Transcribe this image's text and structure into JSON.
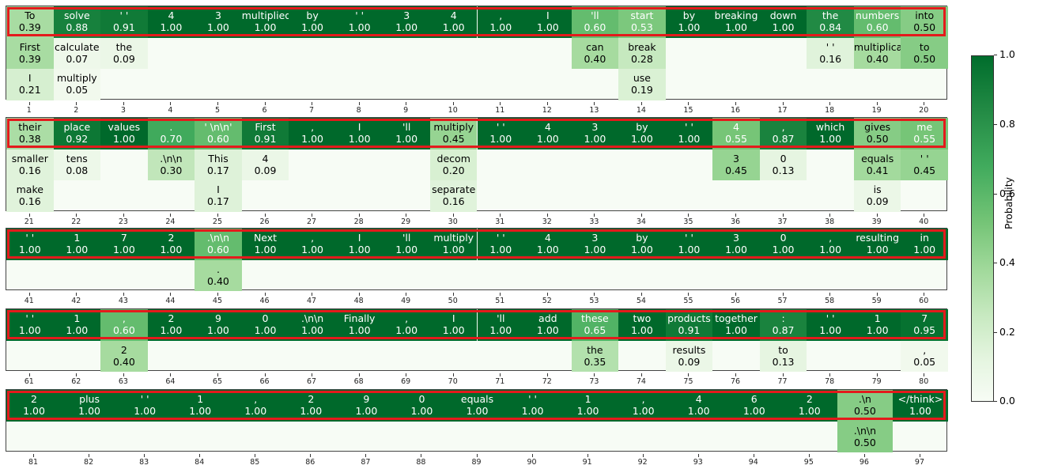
{
  "chart_data": {
    "type": "heatmap",
    "title": "",
    "colormap": "Greens",
    "colorbar": {
      "label": "Probability",
      "ticks": [
        "0.0",
        "0.2",
        "0.4",
        "0.6",
        "0.8",
        "1.0"
      ],
      "range": [
        0,
        1
      ]
    },
    "highlight_color": "#e41a1c",
    "panels": [
      {
        "rows": 3,
        "positions": [
          {
            "pos": 1,
            "cands": [
              [
                "To",
                "0.39"
              ],
              [
                "First",
                "0.39"
              ],
              [
                "I",
                "0.21"
              ]
            ]
          },
          {
            "pos": 2,
            "cands": [
              [
                "solve",
                "0.88"
              ],
              [
                "calculate",
                "0.07"
              ],
              [
                "multiply",
                "0.05"
              ]
            ]
          },
          {
            "pos": 3,
            "cands": [
              [
                "' '",
                "0.91"
              ],
              [
                "the",
                "0.09"
              ]
            ]
          },
          {
            "pos": 4,
            "cands": [
              [
                "4",
                "1.00"
              ]
            ]
          },
          {
            "pos": 5,
            "cands": [
              [
                "3",
                "1.00"
              ]
            ]
          },
          {
            "pos": 6,
            "cands": [
              [
                "multiplied",
                "1.00"
              ]
            ]
          },
          {
            "pos": 7,
            "cands": [
              [
                "by",
                "1.00"
              ]
            ]
          },
          {
            "pos": 8,
            "cands": [
              [
                "' '",
                "1.00"
              ]
            ]
          },
          {
            "pos": 9,
            "cands": [
              [
                "3",
                "1.00"
              ]
            ]
          },
          {
            "pos": 10,
            "cands": [
              [
                "4",
                "1.00"
              ]
            ]
          },
          {
            "pos": 11,
            "cands": [
              [
                ",",
                "1.00"
              ]
            ]
          },
          {
            "pos": 12,
            "cands": [
              [
                "I",
                "1.00"
              ]
            ]
          },
          {
            "pos": 13,
            "cands": [
              [
                "'ll",
                "0.60"
              ],
              [
                "can",
                "0.40"
              ]
            ]
          },
          {
            "pos": 14,
            "cands": [
              [
                "start",
                "0.53"
              ],
              [
                "break",
                "0.28"
              ],
              [
                "use",
                "0.19"
              ]
            ]
          },
          {
            "pos": 15,
            "cands": [
              [
                "by",
                "1.00"
              ]
            ]
          },
          {
            "pos": 16,
            "cands": [
              [
                "breaking",
                "1.00"
              ]
            ]
          },
          {
            "pos": 17,
            "cands": [
              [
                "down",
                "1.00"
              ]
            ]
          },
          {
            "pos": 18,
            "cands": [
              [
                "the",
                "0.84"
              ],
              [
                "' '",
                "0.16"
              ]
            ]
          },
          {
            "pos": 19,
            "cands": [
              [
                "numbers",
                "0.60"
              ],
              [
                "multiplication",
                "0.40"
              ]
            ]
          },
          {
            "pos": 20,
            "cands": [
              [
                "into",
                "0.50"
              ],
              [
                "to",
                "0.50"
              ]
            ]
          }
        ]
      },
      {
        "rows": 3,
        "positions": [
          {
            "pos": 21,
            "cands": [
              [
                "their",
                "0.38"
              ],
              [
                "smaller",
                "0.16"
              ],
              [
                "make",
                "0.16"
              ]
            ]
          },
          {
            "pos": 22,
            "cands": [
              [
                "place",
                "0.92"
              ],
              [
                "tens",
                "0.08"
              ]
            ]
          },
          {
            "pos": 23,
            "cands": [
              [
                "values",
                "1.00"
              ]
            ]
          },
          {
            "pos": 24,
            "cands": [
              [
                ".",
                "0.70"
              ],
              [
                ".\\n\\n",
                "0.30"
              ]
            ]
          },
          {
            "pos": 25,
            "cands": [
              [
                "' \\n\\n'",
                "0.60"
              ],
              [
                "This",
                "0.17"
              ],
              [
                "I",
                "0.17"
              ]
            ]
          },
          {
            "pos": 26,
            "cands": [
              [
                "First",
                "0.91"
              ],
              [
                "4",
                "0.09"
              ]
            ]
          },
          {
            "pos": 27,
            "cands": [
              [
                ",",
                "1.00"
              ]
            ]
          },
          {
            "pos": 28,
            "cands": [
              [
                "I",
                "1.00"
              ]
            ]
          },
          {
            "pos": 29,
            "cands": [
              [
                "'ll",
                "1.00"
              ]
            ]
          },
          {
            "pos": 30,
            "cands": [
              [
                "multiply",
                "0.45"
              ],
              [
                "decom",
                "0.20"
              ],
              [
                "separate",
                "0.16"
              ]
            ]
          },
          {
            "pos": 31,
            "cands": [
              [
                "' '",
                "1.00"
              ]
            ]
          },
          {
            "pos": 32,
            "cands": [
              [
                "4",
                "1.00"
              ]
            ]
          },
          {
            "pos": 33,
            "cands": [
              [
                "3",
                "1.00"
              ]
            ]
          },
          {
            "pos": 34,
            "cands": [
              [
                "by",
                "1.00"
              ]
            ]
          },
          {
            "pos": 35,
            "cands": [
              [
                "' '",
                "1.00"
              ]
            ]
          },
          {
            "pos": 36,
            "cands": [
              [
                "4",
                "0.55"
              ],
              [
                "3",
                "0.45"
              ]
            ]
          },
          {
            "pos": 37,
            "cands": [
              [
                ",",
                "0.87"
              ],
              [
                "0",
                "0.13"
              ]
            ]
          },
          {
            "pos": 38,
            "cands": [
              [
                "which",
                "1.00"
              ]
            ]
          },
          {
            "pos": 39,
            "cands": [
              [
                "gives",
                "0.50"
              ],
              [
                "equals",
                "0.41"
              ],
              [
                "is",
                "0.09"
              ]
            ]
          },
          {
            "pos": 40,
            "cands": [
              [
                "me",
                "0.55"
              ],
              [
                "' '",
                "0.45"
              ]
            ]
          }
        ]
      },
      {
        "rows": 2,
        "positions": [
          {
            "pos": 41,
            "cands": [
              [
                "' '",
                "1.00"
              ]
            ]
          },
          {
            "pos": 42,
            "cands": [
              [
                "1",
                "1.00"
              ]
            ]
          },
          {
            "pos": 43,
            "cands": [
              [
                "7",
                "1.00"
              ]
            ]
          },
          {
            "pos": 44,
            "cands": [
              [
                "2",
                "1.00"
              ]
            ]
          },
          {
            "pos": 45,
            "cands": [
              [
                ".\\n\\n",
                "0.60"
              ],
              [
                ".",
                "0.40"
              ]
            ]
          },
          {
            "pos": 46,
            "cands": [
              [
                "Next",
                "1.00"
              ]
            ]
          },
          {
            "pos": 47,
            "cands": [
              [
                ",",
                "1.00"
              ]
            ]
          },
          {
            "pos": 48,
            "cands": [
              [
                "I",
                "1.00"
              ]
            ]
          },
          {
            "pos": 49,
            "cands": [
              [
                "'ll",
                "1.00"
              ]
            ]
          },
          {
            "pos": 50,
            "cands": [
              [
                "multiply",
                "1.00"
              ]
            ]
          },
          {
            "pos": 51,
            "cands": [
              [
                "' '",
                "1.00"
              ]
            ]
          },
          {
            "pos": 52,
            "cands": [
              [
                "4",
                "1.00"
              ]
            ]
          },
          {
            "pos": 53,
            "cands": [
              [
                "3",
                "1.00"
              ]
            ]
          },
          {
            "pos": 54,
            "cands": [
              [
                "by",
                "1.00"
              ]
            ]
          },
          {
            "pos": 55,
            "cands": [
              [
                "' '",
                "1.00"
              ]
            ]
          },
          {
            "pos": 56,
            "cands": [
              [
                "3",
                "1.00"
              ]
            ]
          },
          {
            "pos": 57,
            "cands": [
              [
                "0",
                "1.00"
              ]
            ]
          },
          {
            "pos": 58,
            "cands": [
              [
                ",",
                "1.00"
              ]
            ]
          },
          {
            "pos": 59,
            "cands": [
              [
                "resulting",
                "1.00"
              ]
            ]
          },
          {
            "pos": 60,
            "cands": [
              [
                "in",
                "1.00"
              ]
            ]
          }
        ]
      },
      {
        "rows": 2,
        "positions": [
          {
            "pos": 61,
            "cands": [
              [
                "' '",
                "1.00"
              ]
            ]
          },
          {
            "pos": 62,
            "cands": [
              [
                "1",
                "1.00"
              ]
            ]
          },
          {
            "pos": 63,
            "cands": [
              [
                ",",
                "0.60"
              ],
              [
                "2",
                "0.40"
              ]
            ]
          },
          {
            "pos": 64,
            "cands": [
              [
                "2",
                "1.00"
              ]
            ]
          },
          {
            "pos": 65,
            "cands": [
              [
                "9",
                "1.00"
              ]
            ]
          },
          {
            "pos": 66,
            "cands": [
              [
                "0",
                "1.00"
              ]
            ]
          },
          {
            "pos": 67,
            "cands": [
              [
                ".\\n\\n",
                "1.00"
              ]
            ]
          },
          {
            "pos": 68,
            "cands": [
              [
                "Finally",
                "1.00"
              ]
            ]
          },
          {
            "pos": 69,
            "cands": [
              [
                ",",
                "1.00"
              ]
            ]
          },
          {
            "pos": 70,
            "cands": [
              [
                "I",
                "1.00"
              ]
            ]
          },
          {
            "pos": 71,
            "cands": [
              [
                "'ll",
                "1.00"
              ]
            ]
          },
          {
            "pos": 72,
            "cands": [
              [
                "add",
                "1.00"
              ]
            ]
          },
          {
            "pos": 73,
            "cands": [
              [
                "these",
                "0.65"
              ],
              [
                "the",
                "0.35"
              ]
            ]
          },
          {
            "pos": 74,
            "cands": [
              [
                "two",
                "1.00"
              ]
            ]
          },
          {
            "pos": 75,
            "cands": [
              [
                "products",
                "0.91"
              ],
              [
                "results",
                "0.09"
              ]
            ]
          },
          {
            "pos": 76,
            "cands": [
              [
                "together",
                "1.00"
              ]
            ]
          },
          {
            "pos": 77,
            "cands": [
              [
                ":",
                "0.87"
              ],
              [
                "to",
                "0.13"
              ]
            ]
          },
          {
            "pos": 78,
            "cands": [
              [
                "' '",
                "1.00"
              ]
            ]
          },
          {
            "pos": 79,
            "cands": [
              [
                "1",
                "1.00"
              ]
            ]
          },
          {
            "pos": 80,
            "cands": [
              [
                "7",
                "0.95"
              ],
              [
                ",",
                "0.05"
              ]
            ]
          }
        ]
      },
      {
        "rows": 2,
        "positions": [
          {
            "pos": 81,
            "cands": [
              [
                "2",
                "1.00"
              ]
            ]
          },
          {
            "pos": 82,
            "cands": [
              [
                "plus",
                "1.00"
              ]
            ]
          },
          {
            "pos": 83,
            "cands": [
              [
                "' '",
                "1.00"
              ]
            ]
          },
          {
            "pos": 84,
            "cands": [
              [
                "1",
                "1.00"
              ]
            ]
          },
          {
            "pos": 85,
            "cands": [
              [
                ",",
                "1.00"
              ]
            ]
          },
          {
            "pos": 86,
            "cands": [
              [
                "2",
                "1.00"
              ]
            ]
          },
          {
            "pos": 87,
            "cands": [
              [
                "9",
                "1.00"
              ]
            ]
          },
          {
            "pos": 88,
            "cands": [
              [
                "0",
                "1.00"
              ]
            ]
          },
          {
            "pos": 89,
            "cands": [
              [
                "equals",
                "1.00"
              ]
            ]
          },
          {
            "pos": 90,
            "cands": [
              [
                "' '",
                "1.00"
              ]
            ]
          },
          {
            "pos": 91,
            "cands": [
              [
                "1",
                "1.00"
              ]
            ]
          },
          {
            "pos": 92,
            "cands": [
              [
                ",",
                "1.00"
              ]
            ]
          },
          {
            "pos": 93,
            "cands": [
              [
                "4",
                "1.00"
              ]
            ]
          },
          {
            "pos": 94,
            "cands": [
              [
                "6",
                "1.00"
              ]
            ]
          },
          {
            "pos": 95,
            "cands": [
              [
                "2",
                "1.00"
              ]
            ]
          },
          {
            "pos": 96,
            "cands": [
              [
                ".\\n",
                "0.50"
              ],
              [
                ".\\n\\n",
                "0.50"
              ]
            ]
          },
          {
            "pos": 97,
            "cands": [
              [
                "</think>",
                "1.00"
              ]
            ]
          }
        ]
      }
    ]
  },
  "colorbar": {
    "label": "Probability",
    "ticks": [
      "0.0",
      "0.2",
      "0.4",
      "0.6",
      "0.8",
      "1.0"
    ]
  }
}
